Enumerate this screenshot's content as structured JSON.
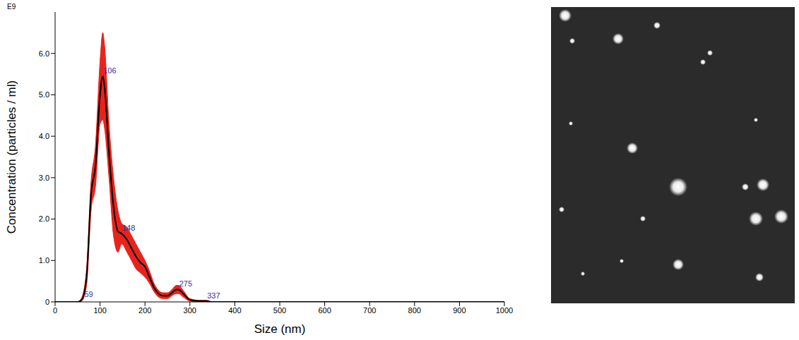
{
  "chart_data": {
    "type": "line",
    "x_label": "Size (nm)",
    "y_label": "Concentration (particles / ml)",
    "y_multiplier": "E9",
    "color": "#000000",
    "x": [
      0,
      50,
      59,
      70,
      80,
      90,
      100,
      106,
      110,
      120,
      130,
      140,
      148,
      160,
      170,
      180,
      190,
      200,
      210,
      220,
      230,
      240,
      250,
      260,
      270,
      275,
      285,
      300,
      320,
      337,
      350,
      400,
      1000
    ],
    "values": [
      0,
      0,
      0.05,
      0.6,
      2.6,
      3.3,
      5.0,
      5.45,
      5.2,
      3.6,
      2.3,
      1.7,
      1.65,
      1.5,
      1.3,
      1.1,
      0.95,
      0.85,
      0.6,
      0.35,
      0.2,
      0.15,
      0.15,
      0.22,
      0.3,
      0.3,
      0.2,
      0.05,
      0.02,
      0.02,
      0,
      0,
      0
    ],
    "band": {
      "color": "#e8231c",
      "lower": [
        0,
        0,
        0.02,
        0.4,
        2.2,
        2.8,
        4.3,
        4.4,
        4.2,
        3.0,
        1.6,
        1.2,
        1.4,
        1.2,
        1.0,
        0.8,
        0.7,
        0.6,
        0.45,
        0.25,
        0.12,
        0.08,
        0.08,
        0.15,
        0.2,
        0.2,
        0.12,
        0.02,
        0,
        0,
        0,
        0,
        0
      ],
      "upper": [
        0,
        0,
        0.1,
        0.8,
        2.9,
        3.8,
        5.8,
        6.5,
        6.2,
        4.3,
        3.0,
        2.2,
        1.9,
        1.8,
        1.6,
        1.4,
        1.2,
        1.0,
        0.75,
        0.45,
        0.28,
        0.22,
        0.22,
        0.3,
        0.4,
        0.4,
        0.28,
        0.08,
        0.04,
        0.04,
        0,
        0,
        0
      ]
    },
    "annotations": [
      {
        "text": "59",
        "x": 59,
        "y": 0.05
      },
      {
        "text": "106",
        "x": 106,
        "y": 5.45
      },
      {
        "text": "148",
        "x": 148,
        "y": 1.65
      },
      {
        "text": "275",
        "x": 275,
        "y": 0.3
      },
      {
        "text": "337",
        "x": 337,
        "y": 0.02
      }
    ],
    "xlim": [
      0,
      1000
    ],
    "xticks": [
      0,
      100,
      200,
      300,
      400,
      500,
      600,
      700,
      800,
      900,
      1000
    ],
    "ylim": [
      0,
      7
    ],
    "yticks": [
      0,
      {
        "value": 1,
        "label": "1.0"
      },
      {
        "value": 2,
        "label": "2.0"
      },
      {
        "value": 3,
        "label": "3.0"
      },
      {
        "value": 4,
        "label": "4.0"
      },
      {
        "value": 5,
        "label": "5.0"
      },
      {
        "value": 6,
        "label": "6.0"
      }
    ],
    "grid": false
  }
}
